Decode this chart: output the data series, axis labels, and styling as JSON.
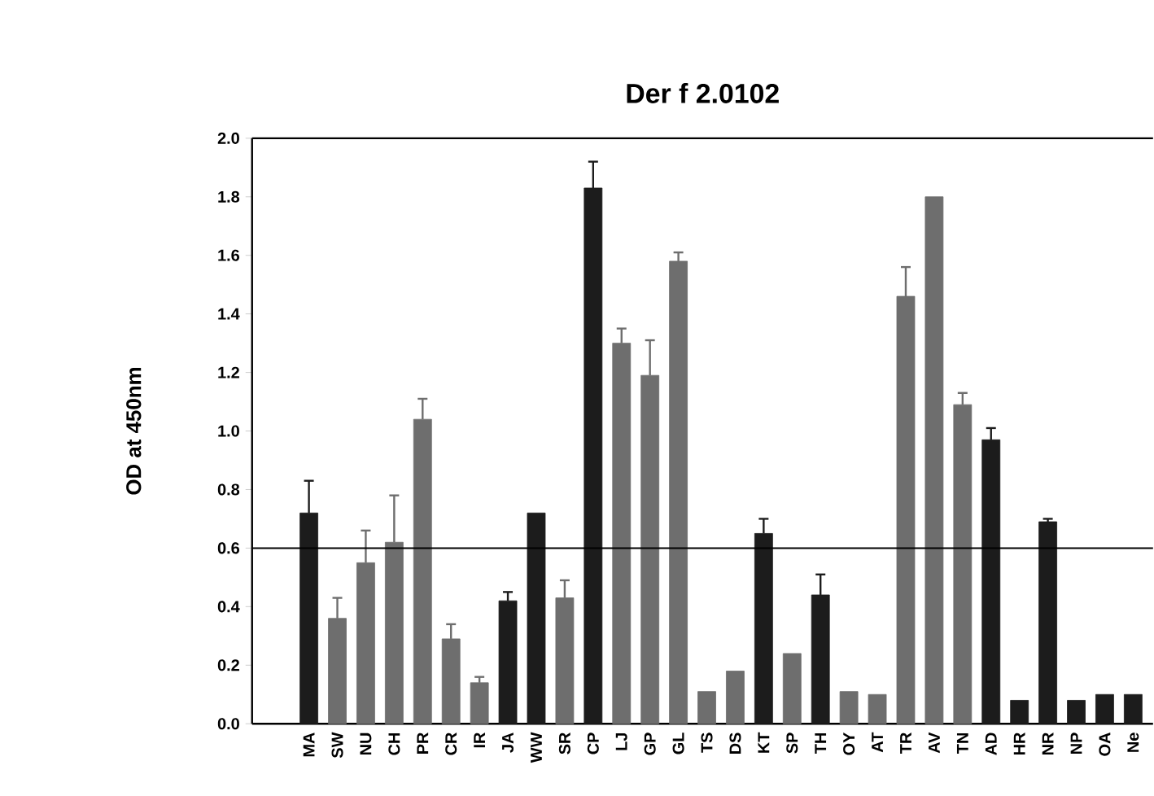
{
  "chart_data": {
    "type": "bar",
    "title": "Der f 2.0102",
    "ylabel": "OD at 450nm",
    "categories": [
      "MA",
      "SW",
      "NU",
      "CH",
      "PR",
      "CR",
      "IR",
      "JA",
      "WW",
      "SR",
      "CP",
      "LJ",
      "GP",
      "GL",
      "TS",
      "DS",
      "KT",
      "SP",
      "TH",
      "OY",
      "AT",
      "TR",
      "AV",
      "TN",
      "AD",
      "HR",
      "NR",
      "NP",
      "OA",
      "Ne"
    ],
    "values": [
      0.72,
      0.36,
      0.55,
      0.62,
      1.04,
      0.29,
      0.14,
      0.42,
      0.72,
      0.43,
      1.83,
      1.3,
      1.19,
      1.58,
      0.11,
      0.18,
      0.65,
      0.24,
      0.44,
      0.11,
      0.1,
      1.46,
      1.8,
      1.09,
      0.97,
      0.08,
      0.69,
      0.08,
      0.1,
      0.1
    ],
    "errors": [
      0.11,
      0.07,
      0.11,
      0.16,
      0.07,
      0.05,
      0.02,
      0.03,
      null,
      0.06,
      0.09,
      0.05,
      0.12,
      0.03,
      null,
      null,
      0.05,
      null,
      0.07,
      null,
      null,
      0.1,
      null,
      0.04,
      0.04,
      null,
      0.01,
      null,
      null,
      null
    ],
    "colors": [
      "#1c1c1c",
      "#6e6e6e",
      "#6e6e6e",
      "#6e6e6e",
      "#6e6e6e",
      "#6e6e6e",
      "#6e6e6e",
      "#1c1c1c",
      "#1c1c1c",
      "#6e6e6e",
      "#1c1c1c",
      "#6e6e6e",
      "#6e6e6e",
      "#6e6e6e",
      "#6e6e6e",
      "#6e6e6e",
      "#1c1c1c",
      "#6e6e6e",
      "#1c1c1c",
      "#6e6e6e",
      "#6e6e6e",
      "#6e6e6e",
      "#6e6e6e",
      "#6e6e6e",
      "#1c1c1c",
      "#1c1c1c",
      "#1c1c1c",
      "#1c1c1c",
      "#1c1c1c",
      "#1c1c1c"
    ],
    "ylim": [
      0,
      2
    ],
    "yticks": [
      {
        "value": 0,
        "label": "0.0"
      },
      0.2,
      0.4,
      0.6,
      0.8,
      {
        "value": 1,
        "label": "1.0"
      },
      1.2,
      1.4,
      1.6,
      1.8,
      {
        "value": 2,
        "label": "2.0"
      }
    ],
    "ref_lines": [
      {
        "axis": "y",
        "value": 0.6,
        "color": "#000000"
      }
    ]
  }
}
